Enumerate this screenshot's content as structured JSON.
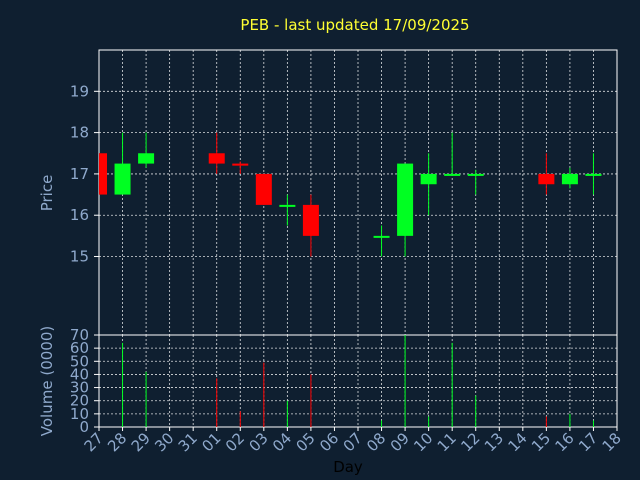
{
  "chart_data": {
    "type": "candlestick",
    "title": "PEB - last updated 17/09/2025",
    "xlabel": "Day",
    "price": {
      "ylabel": "Price",
      "ylim": [
        13.1,
        20.0
      ],
      "yticks": [
        15,
        16,
        17,
        18,
        19
      ]
    },
    "volume": {
      "ylabel": "Volume (0000)",
      "ylim": [
        0,
        70
      ],
      "yticks": [
        0,
        10,
        20,
        30,
        40,
        50,
        60,
        70
      ]
    },
    "categories": [
      "27",
      "28",
      "29",
      "30",
      "31",
      "01",
      "02",
      "03",
      "04",
      "05",
      "06",
      "07",
      "08",
      "09",
      "10",
      "11",
      "12",
      "13",
      "14",
      "15",
      "16",
      "17",
      "18"
    ],
    "grid": true,
    "colors": {
      "background": "#0f1f30",
      "frame": "#ffffff",
      "up": "#00ff22",
      "down": "#ff0000",
      "title": "#ffff33",
      "axis_text": "#8fa9cc"
    },
    "series": [
      {
        "day": "27",
        "open": 17.5,
        "high": 17.5,
        "low": 16.5,
        "close": 16.5,
        "volume": 0
      },
      {
        "day": "28",
        "open": 16.5,
        "high": 18.0,
        "low": 16.5,
        "close": 17.25,
        "volume": 64
      },
      {
        "day": "29",
        "open": 17.25,
        "high": 18.0,
        "low": 17.15,
        "close": 17.5,
        "volume": 42
      },
      {
        "day": "01",
        "open": 17.5,
        "high": 18.0,
        "low": 17.0,
        "close": 17.25,
        "volume": 37
      },
      {
        "day": "02",
        "open": 17.25,
        "high": 17.3,
        "low": 17.0,
        "close": 17.2,
        "volume": 12
      },
      {
        "day": "03",
        "open": 17.0,
        "high": 17.0,
        "low": 16.25,
        "close": 16.25,
        "volume": 49
      },
      {
        "day": "04",
        "open": 16.25,
        "high": 16.5,
        "low": 15.75,
        "close": 16.25,
        "volume": 20
      },
      {
        "day": "05",
        "open": 16.25,
        "high": 16.5,
        "low": 15.0,
        "close": 15.5,
        "volume": 40
      },
      {
        "day": "08",
        "open": 15.5,
        "high": 15.75,
        "low": 15.0,
        "close": 15.5,
        "volume": 5
      },
      {
        "day": "09",
        "open": 15.5,
        "high": 17.25,
        "low": 15.0,
        "close": 17.25,
        "volume": 70
      },
      {
        "day": "10",
        "open": 16.75,
        "high": 17.5,
        "low": 16.0,
        "close": 17.0,
        "volume": 8
      },
      {
        "day": "11",
        "open": 17.0,
        "high": 18.0,
        "low": 17.0,
        "close": 17.0,
        "volume": 64
      },
      {
        "day": "12",
        "open": 17.0,
        "high": 17.1,
        "low": 16.5,
        "close": 17.0,
        "volume": 24
      },
      {
        "day": "15",
        "open": 17.0,
        "high": 17.5,
        "low": 16.5,
        "close": 16.75,
        "volume": 8
      },
      {
        "day": "16",
        "open": 16.75,
        "high": 17.15,
        "low": 16.65,
        "close": 17.0,
        "volume": 10
      },
      {
        "day": "17",
        "open": 17.0,
        "high": 17.5,
        "low": 16.5,
        "close": 17.0,
        "volume": 5
      }
    ]
  }
}
